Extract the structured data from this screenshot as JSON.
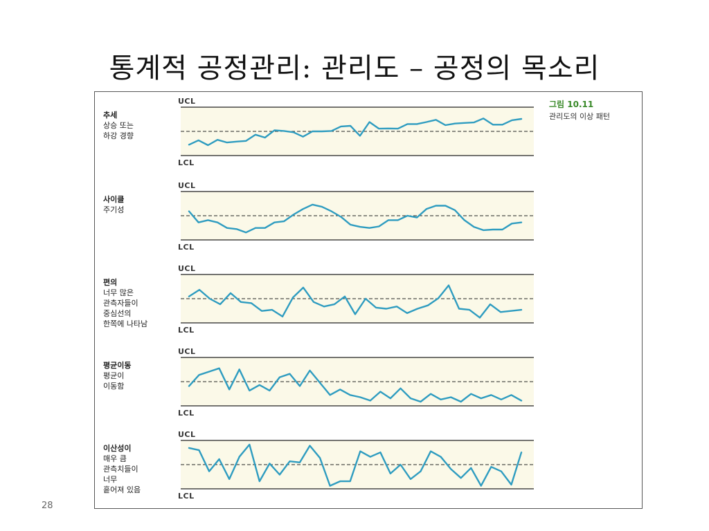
{
  "slide": {
    "title": "통계적 공정관리: 관리도 – 공정의 목소리",
    "page_number": "28"
  },
  "figure": {
    "caption_label": "그림 10.11",
    "caption_text": "관리도의 이상 패턴",
    "ucl_label": "UCL",
    "lcl_label": "LCL",
    "colors": {
      "line": "#2e9cc0",
      "band": "#fbf9e8",
      "limit": "#222222",
      "center": "#222222"
    }
  },
  "panels": [
    {
      "lines": [
        "추세",
        "상승 또는",
        "하강 경향"
      ],
      "values": [
        -0.6,
        -0.4,
        -0.62,
        -0.38,
        -0.5,
        -0.46,
        -0.43,
        -0.15,
        -0.28,
        0.05,
        0.02,
        -0.04,
        -0.24,
        0.0,
        0.0,
        0.02,
        0.22,
        0.25,
        -0.2,
        0.42,
        0.12,
        0.13,
        0.12,
        0.33,
        0.33,
        0.42,
        0.52,
        0.28,
        0.35,
        0.38,
        0.4,
        0.58,
        0.3,
        0.3,
        0.5,
        0.56
      ]
    },
    {
      "lines": [
        "사이클",
        "주기성"
      ],
      "values": [
        0.2,
        -0.3,
        -0.2,
        -0.3,
        -0.55,
        -0.6,
        -0.75,
        -0.55,
        -0.55,
        -0.3,
        -0.25,
        0.05,
        0.3,
        0.5,
        0.4,
        0.2,
        -0.05,
        -0.4,
        -0.5,
        -0.55,
        -0.48,
        -0.2,
        -0.2,
        0.0,
        -0.08,
        0.3,
        0.45,
        0.45,
        0.25,
        -0.2,
        -0.5,
        -0.65,
        -0.62,
        -0.62,
        -0.35,
        -0.3
      ]
    },
    {
      "lines": [
        "편의",
        "너무 많은",
        "관측자들이",
        "중심선의",
        "한쪽에 나타남"
      ],
      "values": [
        0.1,
        0.4,
        0.0,
        -0.25,
        0.25,
        -0.15,
        -0.2,
        -0.55,
        -0.5,
        -0.8,
        0.05,
        0.5,
        -0.15,
        -0.35,
        -0.25,
        0.1,
        -0.7,
        0.0,
        -0.4,
        -0.45,
        -0.35,
        -0.65,
        -0.45,
        -0.3,
        0.02,
        0.6,
        -0.45,
        -0.5,
        -0.85,
        -0.25,
        -0.6,
        -0.55,
        -0.5
      ]
    },
    {
      "lines": [
        "평균이동",
        "평균이",
        "이동함"
      ],
      "values": [
        -0.2,
        0.3,
        0.45,
        0.6,
        -0.35,
        0.55,
        -0.4,
        -0.15,
        -0.4,
        0.2,
        0.35,
        -0.2,
        0.5,
        -0.05,
        -0.6,
        -0.35,
        -0.6,
        -0.7,
        -0.85,
        -0.45,
        -0.75,
        -0.3,
        -0.75,
        -0.9,
        -0.55,
        -0.8,
        -0.7,
        -0.9,
        -0.55,
        -0.75,
        -0.6,
        -0.8,
        -0.6,
        -0.85
      ]
    },
    {
      "lines": [
        "이산성이",
        "매우 큼",
        "관측치들이",
        "너무",
        "흩어져 있음"
      ],
      "values": [
        0.75,
        0.65,
        -0.3,
        0.25,
        -0.65,
        0.35,
        0.9,
        -0.75,
        0.05,
        -0.45,
        0.15,
        0.1,
        0.85,
        0.3,
        -0.95,
        -0.75,
        -0.75,
        0.6,
        0.35,
        0.55,
        -0.4,
        0.0,
        -0.65,
        -0.3,
        0.6,
        0.35,
        -0.2,
        -0.6,
        -0.15,
        -0.95,
        -0.1,
        -0.3,
        -0.9,
        0.55
      ]
    }
  ]
}
